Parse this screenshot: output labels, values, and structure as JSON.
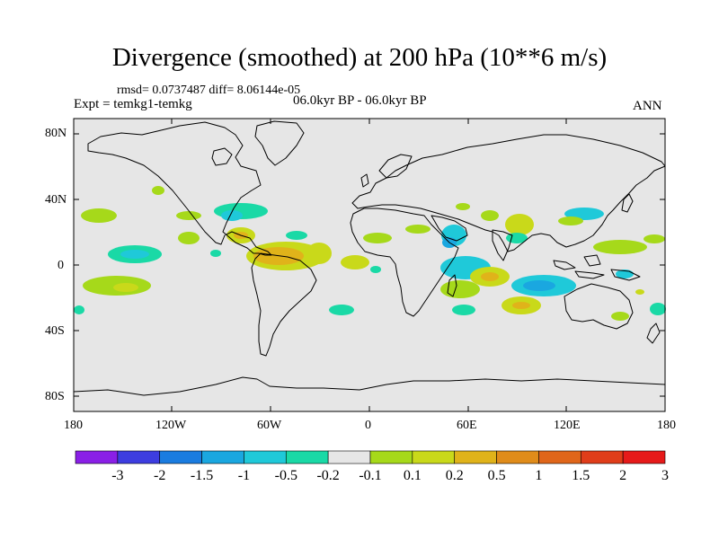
{
  "header": {
    "title": "Divergence (smoothed) at 200 hPa (10**6 m/s)",
    "stats": "rmsd= 0.0737487 diff= 8.06144e-05",
    "experiment": "Expt = temkg1-temkg",
    "period": "06.0kyr BP - 06.0kyr BP",
    "season": "ANN"
  },
  "map": {
    "y_ticks": [
      "80N",
      "40N",
      "0",
      "40S",
      "80S"
    ],
    "x_ticks": [
      "180",
      "120W",
      "60W",
      "0",
      "60E",
      "120E",
      "180"
    ],
    "ocean_color": "#e6e6e6",
    "coast_color": "#000000"
  },
  "colorbar": {
    "labels": [
      "-3",
      "-2",
      "-1.5",
      "-1",
      "-0.5",
      "-0.2",
      "-0.1",
      "0.1",
      "0.2",
      "0.5",
      "1",
      "1.5",
      "2",
      "3"
    ],
    "colors": [
      "#8a1fe6",
      "#3d3de0",
      "#1a7ce0",
      "#1aa7e0",
      "#1fc9d9",
      "#1ad9a6",
      "#e6e6e6",
      "#a6d91a",
      "#c9d91a",
      "#e0b31a",
      "#e08c1a",
      "#e0661a",
      "#e03d1a",
      "#e61a1a"
    ]
  }
}
